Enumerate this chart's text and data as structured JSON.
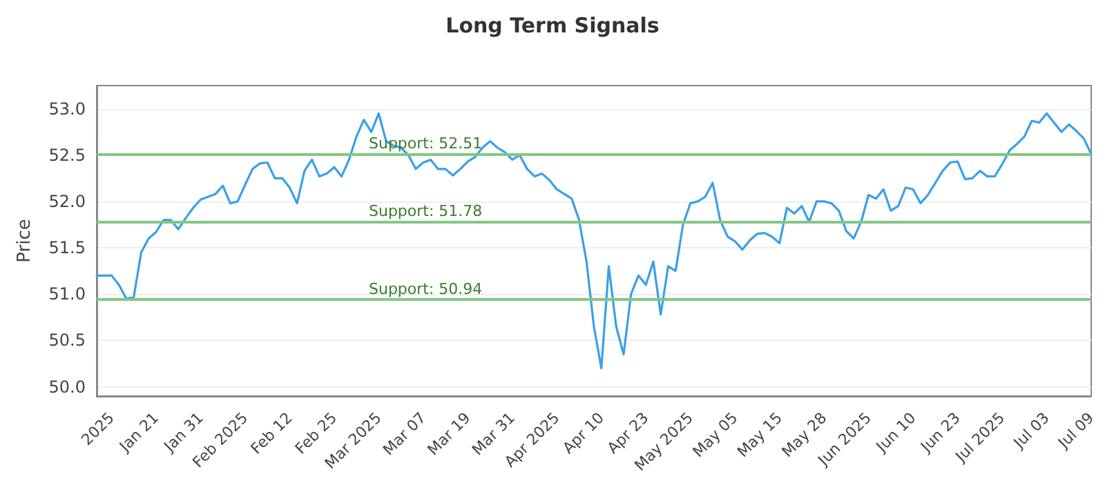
{
  "chart_data": {
    "type": "line",
    "title": "Long Term Signals",
    "ylabel": "Price",
    "categories": [
      null,
      null,
      "2025",
      null,
      null,
      null,
      null,
      null,
      "Jan 21",
      null,
      null,
      null,
      null,
      null,
      "Jan 31",
      null,
      null,
      null,
      null,
      null,
      "Feb 2025",
      null,
      null,
      null,
      null,
      null,
      "Feb 12",
      null,
      null,
      null,
      null,
      null,
      "Feb 25",
      null,
      null,
      null,
      null,
      null,
      "Mar 2025",
      null,
      null,
      null,
      null,
      null,
      "Mar 07",
      null,
      null,
      null,
      null,
      null,
      "Mar 19",
      null,
      null,
      null,
      null,
      null,
      "Mar 31",
      null,
      null,
      null,
      null,
      null,
      "Apr 2025",
      null,
      null,
      null,
      null,
      null,
      "Apr 10",
      null,
      null,
      null,
      null,
      null,
      "Apr 23",
      null,
      null,
      null,
      null,
      null,
      "May 2025",
      null,
      null,
      null,
      null,
      null,
      "May 05",
      null,
      null,
      null,
      null,
      null,
      "May 15",
      null,
      null,
      null,
      null,
      null,
      "May 28",
      null,
      null,
      null,
      null,
      null,
      "Jun 2025",
      null,
      null,
      null,
      null,
      null,
      "Jun 10",
      null,
      null,
      null,
      null,
      null,
      "Jun 23",
      null,
      null,
      null,
      null,
      null,
      "Jul 2025",
      null,
      null,
      null,
      null,
      null,
      "Jul 03",
      null,
      null,
      null,
      null,
      null,
      "Jul 09"
    ],
    "series": [
      {
        "color": "#3aa0e8",
        "values": [
          51.2,
          51.2,
          51.2,
          51.1,
          50.95,
          50.97,
          51.45,
          51.6,
          51.67,
          51.8,
          51.8,
          51.7,
          51.82,
          51.93,
          52.02,
          52.05,
          52.08,
          52.17,
          51.98,
          52.0,
          52.18,
          52.35,
          52.41,
          52.42,
          52.25,
          52.25,
          52.15,
          51.98,
          52.33,
          52.45,
          52.27,
          52.3,
          52.37,
          52.27,
          52.45,
          52.7,
          52.88,
          52.75,
          52.95,
          52.65,
          52.6,
          52.58,
          52.5,
          52.35,
          52.42,
          52.45,
          52.35,
          52.35,
          52.28,
          52.35,
          52.43,
          52.48,
          52.58,
          52.65,
          52.58,
          52.53,
          52.45,
          52.5,
          52.35,
          52.27,
          52.3,
          52.23,
          52.13,
          52.08,
          52.03,
          51.8,
          51.35,
          50.65,
          50.2,
          51.3,
          50.65,
          50.35,
          51.0,
          51.2,
          51.1,
          51.35,
          50.78,
          51.3,
          51.25,
          51.75,
          51.98,
          52.0,
          52.05,
          52.2,
          51.8,
          51.62,
          51.57,
          51.48,
          51.58,
          51.65,
          51.66,
          51.62,
          51.55,
          51.93,
          51.87,
          51.95,
          51.78,
          52.0,
          52.0,
          51.98,
          51.9,
          51.68,
          51.6,
          51.78,
          52.07,
          52.03,
          52.13,
          51.9,
          51.95,
          52.15,
          52.13,
          51.98,
          52.07,
          52.2,
          52.33,
          52.42,
          52.43,
          52.24,
          52.25,
          52.33,
          52.27,
          52.27,
          52.4,
          52.55,
          52.62,
          52.7,
          52.87,
          52.85,
          52.95,
          52.85,
          52.75,
          52.83,
          52.76,
          52.68,
          52.51
        ]
      }
    ],
    "ylim": [
      49.9,
      53.25
    ],
    "yticks": [
      {
        "value": 50,
        "label": "50.0"
      },
      {
        "value": 50.5,
        "label": "50.5"
      },
      {
        "value": 51,
        "label": "51.0"
      },
      {
        "value": 51.5,
        "label": "51.5"
      },
      {
        "value": 52,
        "label": "52.0"
      },
      {
        "value": 52.5,
        "label": "52.5"
      },
      {
        "value": 53,
        "label": "53.0"
      }
    ],
    "ref_lines": [
      {
        "axis": "y",
        "value": 52.51,
        "label": "Support: 52.51",
        "color": "#82c882"
      },
      {
        "axis": "y",
        "value": 51.78,
        "label": "Support: 51.78",
        "color": "#82c882"
      },
      {
        "axis": "y",
        "value": 50.94,
        "label": "Support: 50.94",
        "color": "#82c882"
      }
    ],
    "grid": "y",
    "marker": "none",
    "line_style": "solid"
  }
}
